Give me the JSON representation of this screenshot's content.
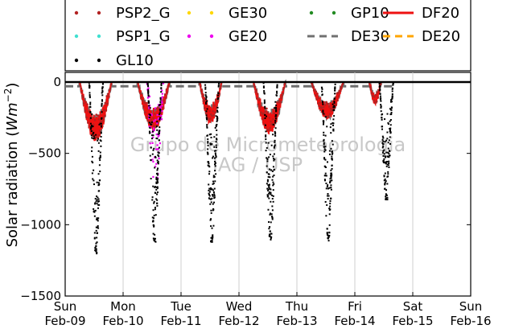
{
  "chart_data": {
    "type": "line",
    "ylabel_text": "Solar radiation (",
    "ylabel_unit": "Wm",
    "ylabel_exp": "−2",
    "ylabel_close": ")",
    "ylim": [
      -1500,
      50
    ],
    "y_ticks": [
      {
        "value": 0,
        "label": "0"
      },
      {
        "value": -500,
        "label": "−500"
      },
      {
        "value": -1000,
        "label": "−1000"
      },
      {
        "value": -1500,
        "label": "−1500"
      }
    ],
    "x_day_range": [
      0,
      7
    ],
    "x_ticks": [
      {
        "day": 0,
        "line1": "Sun",
        "line2": "Feb-09"
      },
      {
        "day": 1,
        "line1": "Mon",
        "line2": "Feb-10"
      },
      {
        "day": 2,
        "line1": "Tue",
        "line2": "Feb-11"
      },
      {
        "day": 3,
        "line1": "Wed",
        "line2": "Feb-12"
      },
      {
        "day": 4,
        "line1": "Thu",
        "line2": "Feb-13"
      },
      {
        "day": 5,
        "line1": "Fri",
        "line2": "Feb-14"
      },
      {
        "day": 6,
        "line1": "Sat",
        "line2": "Feb-15"
      },
      {
        "day": 7,
        "line1": "Sun",
        "line2": "Feb-16"
      }
    ],
    "grid_x": true,
    "legend_position": "top",
    "watermark": [
      "Grupo de Micrometeorologia",
      "IAG / USP"
    ],
    "legend": [
      {
        "name": "PSP2_G",
        "style": "dots",
        "color": "#b22222"
      },
      {
        "name": "GE30",
        "style": "dots",
        "color": "#ffd700"
      },
      {
        "name": "GP10",
        "style": "dots",
        "color": "#228b22"
      },
      {
        "name": "DF20",
        "style": "line",
        "color": "#ee1111"
      },
      {
        "name": "PSP1_G",
        "style": "dots",
        "color": "#40e0d0"
      },
      {
        "name": "GE20",
        "style": "dots",
        "color": "#ee00ee"
      },
      {
        "name": "DE30",
        "style": "dash",
        "color": "#707070"
      },
      {
        "name": "DE20",
        "style": "dash",
        "color": "#ffa500"
      },
      {
        "name": "GL10",
        "style": "dots",
        "color": "#000000"
      }
    ],
    "gl10_peaks": [
      {
        "center": 0.52,
        "min": -1200
      },
      {
        "center": 1.53,
        "min": -1120
      },
      {
        "center": 2.52,
        "min": -1120
      },
      {
        "center": 3.53,
        "min": -1110
      },
      {
        "center": 4.53,
        "min": -1110
      },
      {
        "center": 5.53,
        "min": -820
      }
    ],
    "diffuse_days": [
      {
        "start": 0.25,
        "end": 0.8,
        "min": -400
      },
      {
        "start": 1.25,
        "end": 1.8,
        "min": -330
      },
      {
        "start": 2.32,
        "end": 2.7,
        "min": -280
      },
      {
        "start": 3.25,
        "end": 3.8,
        "min": -350
      },
      {
        "start": 4.25,
        "end": 4.8,
        "min": -250
      },
      {
        "start": 5.25,
        "end": 5.45,
        "min": -150
      }
    ],
    "ge20_span": {
      "start": 1.4,
      "end": 1.68,
      "min": -780
    },
    "night_offset": -30
  }
}
